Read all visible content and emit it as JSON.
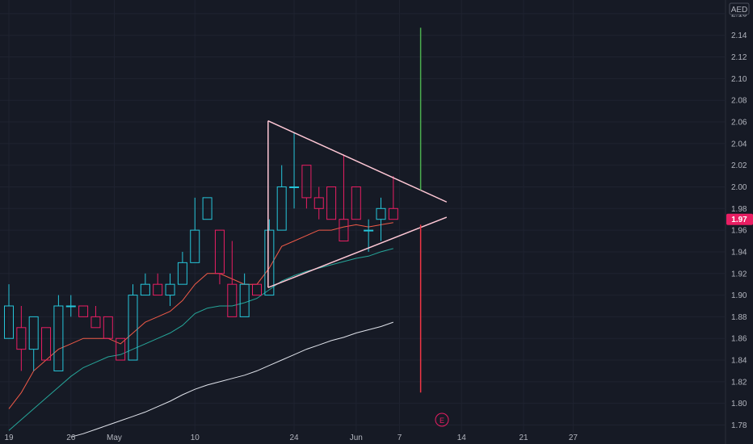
{
  "chart_data": {
    "type": "candlestick",
    "currency": "AED",
    "last_price_label": "1.97",
    "earnings_marker": "E",
    "ylim": [
      1.77,
      2.16
    ],
    "y_ticks": [
      "2.16",
      "2.14",
      "2.12",
      "2.10",
      "2.08",
      "2.06",
      "2.04",
      "2.02",
      "2.00",
      "1.98",
      "1.96",
      "1.94",
      "1.92",
      "1.90",
      "1.88",
      "1.86",
      "1.84",
      "1.82",
      "1.80",
      "1.78"
    ],
    "x_ticks": [
      {
        "label": "19",
        "index": 0
      },
      {
        "label": "26",
        "index": 5
      },
      {
        "label": "May",
        "index": 8.5
      },
      {
        "label": "10",
        "index": 15
      },
      {
        "label": "24",
        "index": 23
      },
      {
        "label": "Jun",
        "index": 28
      },
      {
        "label": "7",
        "index": 31.5
      },
      {
        "label": "14",
        "index": 36.5
      },
      {
        "label": "21",
        "index": 41.5
      },
      {
        "label": "27",
        "index": 45.5
      }
    ],
    "candles": [
      {
        "o": 1.86,
        "h": 1.91,
        "l": 1.86,
        "c": 1.89
      },
      {
        "o": 1.87,
        "h": 1.89,
        "l": 1.83,
        "c": 1.85
      },
      {
        "o": 1.85,
        "h": 1.88,
        "l": 1.83,
        "c": 1.88
      },
      {
        "o": 1.87,
        "h": 1.87,
        "l": 1.84,
        "c": 1.84
      },
      {
        "o": 1.83,
        "h": 1.9,
        "l": 1.83,
        "c": 1.89
      },
      {
        "o": 1.89,
        "h": 1.9,
        "l": 1.88,
        "c": 1.89
      },
      {
        "o": 1.89,
        "h": 1.89,
        "l": 1.88,
        "c": 1.88
      },
      {
        "o": 1.88,
        "h": 1.89,
        "l": 1.87,
        "c": 1.87
      },
      {
        "o": 1.88,
        "h": 1.88,
        "l": 1.86,
        "c": 1.86
      },
      {
        "o": 1.86,
        "h": 1.86,
        "l": 1.84,
        "c": 1.84
      },
      {
        "o": 1.84,
        "h": 1.91,
        "l": 1.84,
        "c": 1.9
      },
      {
        "o": 1.9,
        "h": 1.92,
        "l": 1.9,
        "c": 1.91
      },
      {
        "o": 1.91,
        "h": 1.92,
        "l": 1.9,
        "c": 1.9
      },
      {
        "o": 1.9,
        "h": 1.92,
        "l": 1.89,
        "c": 1.91
      },
      {
        "o": 1.91,
        "h": 1.94,
        "l": 1.91,
        "c": 1.93
      },
      {
        "o": 1.93,
        "h": 1.99,
        "l": 1.93,
        "c": 1.96
      },
      {
        "o": 1.97,
        "h": 1.99,
        "l": 1.97,
        "c": 1.99
      },
      {
        "o": 1.96,
        "h": 1.96,
        "l": 1.91,
        "c": 1.92
      },
      {
        "o": 1.91,
        "h": 1.95,
        "l": 1.88,
        "c": 1.88
      },
      {
        "o": 1.88,
        "h": 1.92,
        "l": 1.88,
        "c": 1.91
      },
      {
        "o": 1.91,
        "h": 1.91,
        "l": 1.9,
        "c": 1.9
      },
      {
        "o": 1.9,
        "h": 1.97,
        "l": 1.9,
        "c": 1.96
      },
      {
        "o": 1.96,
        "h": 2.02,
        "l": 1.96,
        "c": 2.0
      },
      {
        "o": 2.0,
        "h": 2.05,
        "l": 1.98,
        "c": 2.0
      },
      {
        "o": 2.02,
        "h": 2.02,
        "l": 1.98,
        "c": 1.99
      },
      {
        "o": 1.99,
        "h": 2.0,
        "l": 1.97,
        "c": 1.98
      },
      {
        "o": 2.0,
        "h": 2.0,
        "l": 1.97,
        "c": 1.97
      },
      {
        "o": 1.97,
        "h": 2.03,
        "l": 1.95,
        "c": 1.95
      },
      {
        "o": 2.0,
        "h": 2.0,
        "l": 1.97,
        "c": 1.97
      },
      {
        "o": 1.96,
        "h": 1.97,
        "l": 1.94,
        "c": 1.96
      },
      {
        "o": 1.97,
        "h": 1.99,
        "l": 1.95,
        "c": 1.98
      },
      {
        "o": 1.98,
        "h": 2.01,
        "l": 1.97,
        "c": 1.97
      }
    ],
    "series": [
      {
        "color": "#f05a48",
        "values": [
          1.795,
          1.81,
          1.83,
          1.84,
          1.85,
          1.855,
          1.86,
          1.86,
          1.86,
          1.855,
          1.865,
          1.875,
          1.88,
          1.885,
          1.895,
          1.91,
          1.92,
          1.92,
          1.915,
          1.91,
          1.91,
          1.925,
          1.945,
          1.95,
          1.955,
          1.96,
          1.96,
          1.963,
          1.965,
          1.963,
          1.965,
          1.967
        ]
      },
      {
        "color": "#26a69a",
        "values": [
          1.775,
          1.785,
          1.795,
          1.805,
          1.815,
          1.825,
          1.833,
          1.838,
          1.843,
          1.845,
          1.85,
          1.855,
          1.86,
          1.865,
          1.872,
          1.883,
          1.888,
          1.89,
          1.89,
          1.893,
          1.897,
          1.905,
          1.913,
          1.918,
          1.922,
          1.925,
          1.928,
          1.931,
          1.934,
          1.936,
          1.94,
          1.943
        ]
      },
      {
        "color": "#e0e3eb",
        "values": [
          null,
          null,
          null,
          null,
          null,
          1.769,
          1.772,
          1.776,
          1.78,
          1.784,
          1.788,
          1.792,
          1.797,
          1.802,
          1.808,
          1.813,
          1.817,
          1.82,
          1.823,
          1.826,
          1.83,
          1.835,
          1.84,
          1.845,
          1.85,
          1.854,
          1.858,
          1.861,
          1.865,
          1.868,
          1.871,
          1.875
        ]
      }
    ],
    "triangle": {
      "upper": [
        {
          "index": 20.9,
          "value": 2.061
        },
        {
          "index": 35.3,
          "value": 1.986
        }
      ],
      "lower": [
        {
          "index": 20.9,
          "value": 1.907
        },
        {
          "index": 35.3,
          "value": 1.972
        }
      ],
      "apex_index": 35.3,
      "color": "#ffc8d6"
    },
    "target_lines": [
      {
        "index": 33.2,
        "from": 1.997,
        "to": 2.147,
        "color": "#4caf50"
      },
      {
        "index": 33.2,
        "from": 1.965,
        "to": 1.81,
        "color": "#f23645"
      }
    ],
    "up_color": "#26c6da",
    "down_color": "#e91e63",
    "background": "#161a25"
  }
}
